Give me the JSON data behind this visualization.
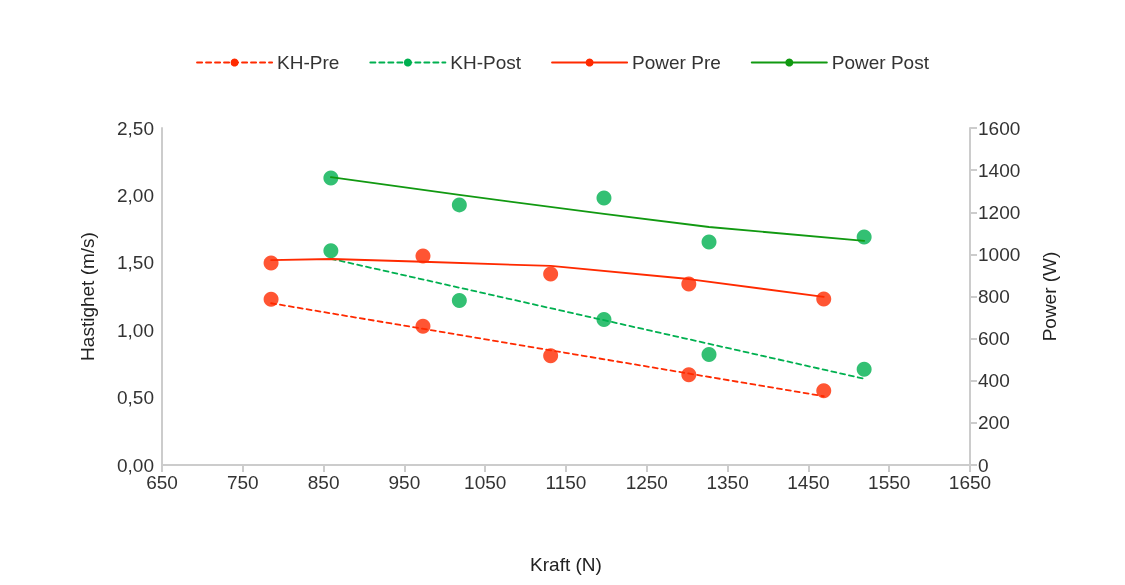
{
  "chart_data": {
    "type": "scatter",
    "xlabel": "Kraft (N)",
    "ylabel": "Hastighet (m/s)",
    "y2label": "Power (W)",
    "xlim": [
      650,
      1650
    ],
    "xticks": [
      650,
      750,
      850,
      950,
      1050,
      1150,
      1250,
      1350,
      1450,
      1550,
      1650
    ],
    "ylim": [
      0,
      2.5
    ],
    "yticks": [
      {
        "value": 0,
        "label": "0,00"
      },
      {
        "value": 0.5,
        "label": "0,50"
      },
      {
        "value": 1,
        "label": "1,00"
      },
      {
        "value": 1.5,
        "label": "1,50"
      },
      {
        "value": 2,
        "label": "2,00"
      },
      {
        "value": 2.5,
        "label": "2,50"
      }
    ],
    "y2lim": [
      0,
      1600
    ],
    "y2ticks": [
      0,
      200,
      400,
      600,
      800,
      1000,
      1200,
      1400,
      1600
    ],
    "legend": "top",
    "grid": false,
    "series": [
      {
        "marker": "circle",
        "color": "#ff2a00",
        "x": [
          785,
          973,
          1131,
          1302,
          1469
        ],
        "values": [
          1.23,
          1.03,
          0.81,
          0.67,
          0.55
        ]
      },
      {
        "marker": "circle",
        "color": "#00b050",
        "x": [
          859,
          1018,
          1197,
          1327,
          1519
        ],
        "values": [
          1.59,
          1.22,
          1.08,
          0.82,
          0.71
        ]
      },
      {
        "marker": "circle",
        "axis": "y2",
        "color": "#ff2a00",
        "x": [
          785,
          973,
          1131,
          1302,
          1469
        ],
        "values": [
          959,
          992,
          907,
          859,
          788
        ]
      },
      {
        "marker": "circle",
        "axis": "y2",
        "color": "#00b050",
        "x": [
          859,
          1018,
          1197,
          1327,
          1519
        ],
        "values": [
          1363,
          1235,
          1268,
          1059,
          1083
        ]
      },
      {
        "type": "line",
        "name": "KH-Pre",
        "line_style": "dashed",
        "marker": "none",
        "color": "#ff2a00",
        "x": [
          785,
          1469
        ],
        "values": [
          1.2,
          0.51
        ]
      },
      {
        "type": "line",
        "name": "KH-Post",
        "line_style": "dashed",
        "marker": "none",
        "color": "#00b050",
        "x": [
          859,
          1519
        ],
        "values": [
          1.53,
          0.64
        ]
      },
      {
        "type": "line",
        "name": "Power Pre",
        "line_style": "solid",
        "marker": "none",
        "axis": "y2",
        "color": "#ff2a00",
        "x": [
          785,
          860,
          973,
          1131,
          1302,
          1469
        ],
        "values": [
          973,
          978,
          965,
          945,
          883,
          798
        ]
      },
      {
        "type": "line",
        "name": "Power Post",
        "line_style": "solid",
        "marker": "none",
        "axis": "y2",
        "color": "#119911",
        "x": [
          859,
          1018,
          1197,
          1327,
          1519
        ],
        "values": [
          1367,
          1282,
          1192,
          1130,
          1064
        ]
      }
    ]
  }
}
